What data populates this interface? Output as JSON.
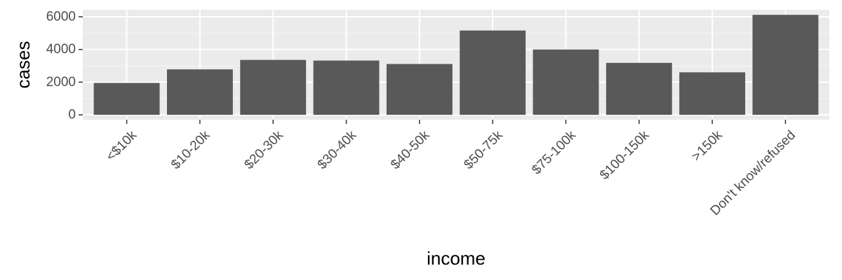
{
  "chart_data": {
    "type": "bar",
    "title": "",
    "xlabel": "income",
    "ylabel": "cases",
    "categories": [
      "<$10k",
      "$10-20k",
      "$20-30k",
      "$30-40k",
      "$40-50k",
      "$50-75k",
      "$75-100k",
      "$100-150k",
      ">150k",
      "Don't know/refused"
    ],
    "values": [
      1950,
      2780,
      3360,
      3320,
      3110,
      5160,
      4000,
      3180,
      2600,
      6120
    ],
    "ylim": [
      0,
      6300
    ],
    "yticks": [
      0,
      2000,
      4000,
      6000
    ],
    "ytick_labels": [
      "0",
      "2000",
      "4000",
      "6000"
    ],
    "grid": true,
    "legend": "none",
    "colors": {
      "panel_background": "#ebebeb",
      "grid_major": "#ffffff",
      "grid_minor": "#f5f5f5",
      "bar_fill": "#595959",
      "tick_text": "#4d4d4d",
      "axis_title_text": "#000000",
      "tick_mark": "#333333"
    }
  }
}
